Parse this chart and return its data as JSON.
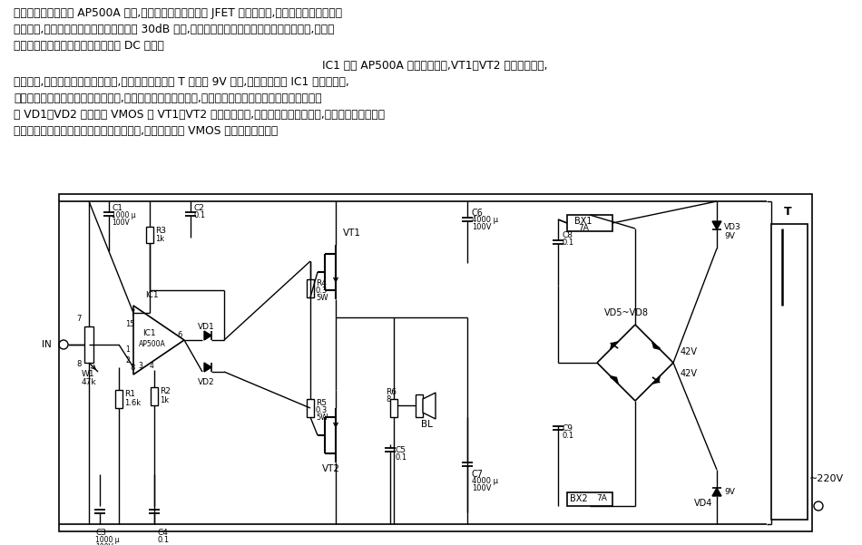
{
  "bg_color": "#ffffff",
  "text_color": "#000000",
  "line_color": "#000000",
  "fig_width": 9.5,
  "fig_height": 6.01,
  "paragraph1": "本电路核心器件采用 AP500A 模块,该器件系高耐压高速双 JFET 输入放大器,内部具有微调输入失调",
  "paragraph2": "电压结构,闭环工作时具有自动调零功能及 30dB 增益,同时具有很小的失真度和很宽的电压频响,配以少",
  "paragraph3": "许外围元件即构成性能优异的宽频响 DC 功放。",
  "paragraph4": "IC1 选用 AP500A 作电压放大级,VT1、VT2 作电流放大级,",
  "paragraph5": "电路简单,前后两级放大器相辅相成,缺一不可。变压器 T 中的双 9V 绕组,用来提高前级 IC1 的工作电压,",
  "paragraph6": "这样做有利于提高本功放的信号线性,降低大动态输出时的失真,同时也可提高本电路的实际输出功率。图",
  "paragraph7": "中 VD1、VD2 用于保护 VMOS 管 VT1、VT2 的栅极绝缘层,因为采用高、低压供电,在大动态工作时、前",
  "paragraph8": "级输出的动态电压范围若高于后级动态范围,就会击穿后级 VMOS 管的栅极绝缘层。"
}
